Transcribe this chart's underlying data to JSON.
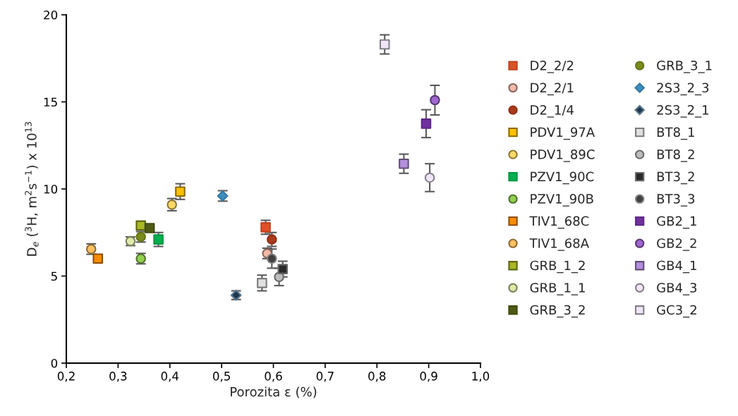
{
  "chart_data": {
    "type": "scatter",
    "xlabel": "Porozita ε (%)",
    "ylabel": "D$_{e}$ ($^{3}$H, m$^{2}$s$^{−1}$) x 10$^{13}$",
    "xlim": [
      0.2,
      1.0
    ],
    "ylim": [
      0,
      20
    ],
    "xticks": [
      {
        "value": 0.2,
        "label": "0,2"
      },
      {
        "value": 0.3,
        "label": "0,3"
      },
      {
        "value": 0.4,
        "label": "0,4"
      },
      {
        "value": 0.5,
        "label": "0,5"
      },
      {
        "value": 0.6,
        "label": "0,6"
      },
      {
        "value": 0.7,
        "label": "0,7"
      },
      {
        "value": 0.8,
        "label": "0,8"
      },
      {
        "value": 0.9,
        "label": "0,9"
      },
      {
        "value": 1.0,
        "label": "1,0"
      }
    ],
    "yticks": [
      0,
      5,
      10,
      15,
      20
    ],
    "grid": false,
    "legend": "right",
    "series": [
      {
        "name": "D2_2/2",
        "color": "#e05026",
        "marker": "square",
        "x": [
          0.585
        ],
        "values": [
          7.8
        ],
        "errors": [
          0.4
        ]
      },
      {
        "name": "D2_2/1",
        "color": "#f4b8a8",
        "marker": "circle",
        "x": [
          0.588
        ],
        "values": [
          6.3
        ],
        "errors": [
          0.3
        ]
      },
      {
        "name": "D2_1/4",
        "color": "#a93a1c",
        "marker": "circle",
        "x": [
          0.597
        ],
        "values": [
          7.1
        ],
        "errors": [
          0.4
        ]
      },
      {
        "name": "PDV1_97A",
        "color": "#ffc000",
        "marker": "square",
        "x": [
          0.42
        ],
        "values": [
          9.85
        ],
        "errors": [
          0.45
        ]
      },
      {
        "name": "PDV1_89C",
        "color": "#ffd966",
        "marker": "circle",
        "x": [
          0.404
        ],
        "values": [
          9.1
        ],
        "errors": [
          0.35
        ]
      },
      {
        "name": "PZV1_90C",
        "color": "#00b050",
        "marker": "square",
        "x": [
          0.378
        ],
        "values": [
          7.1
        ],
        "errors": [
          0.4
        ]
      },
      {
        "name": "PZV1_90B",
        "color": "#92d050",
        "marker": "circle",
        "x": [
          0.344
        ],
        "values": [
          6.0
        ],
        "errors": [
          0.3
        ]
      },
      {
        "name": "TIV1_68C",
        "color": "#ff8c00",
        "marker": "square",
        "x": [
          0.261
        ],
        "values": [
          6.0
        ],
        "errors": [
          null
        ]
      },
      {
        "name": "TIV1_68A",
        "color": "#ffbf60",
        "marker": "circle",
        "x": [
          0.248
        ],
        "values": [
          6.55
        ],
        "errors": [
          0.3
        ]
      },
      {
        "name": "GRB_1_2",
        "color": "#a9b823",
        "marker": "square",
        "x": [
          0.344
        ],
        "values": [
          7.9
        ],
        "errors": [
          null
        ]
      },
      {
        "name": "GRB_1_1",
        "color": "#e0eaa8",
        "marker": "circle",
        "x": [
          0.324
        ],
        "values": [
          7.0
        ],
        "errors": [
          0.25
        ]
      },
      {
        "name": "GRB_3_2",
        "color": "#4f5a14",
        "marker": "square",
        "x": [
          0.361
        ],
        "values": [
          7.75
        ],
        "errors": [
          null
        ]
      },
      {
        "name": "GRB_3_1",
        "color": "#7a8a1c",
        "marker": "circle",
        "x": [
          0.344
        ],
        "values": [
          7.25
        ],
        "errors": [
          0.3
        ]
      },
      {
        "name": "2S3_2_3",
        "color": "#3e8ebf",
        "marker": "diamond",
        "x": [
          0.502
        ],
        "values": [
          9.6
        ],
        "errors": [
          0.3
        ]
      },
      {
        "name": "2S3_2_1",
        "color": "#1f3a50",
        "marker": "diamond",
        "x": [
          0.528
        ],
        "values": [
          3.9
        ],
        "errors": [
          0.25
        ]
      },
      {
        "name": "BT8_1",
        "color": "#e0e0e0",
        "marker": "square",
        "x": [
          0.578
        ],
        "values": [
          4.6
        ],
        "errors": [
          0.45
        ]
      },
      {
        "name": "BT8_2",
        "color": "#bdbdbd",
        "marker": "circle",
        "x": [
          0.611
        ],
        "values": [
          4.95
        ],
        "errors": [
          0.5
        ]
      },
      {
        "name": "BT3_2",
        "color": "#2a2a2a",
        "marker": "square",
        "x": [
          0.618
        ],
        "values": [
          5.4
        ],
        "errors": [
          0.45
        ]
      },
      {
        "name": "BT3_3",
        "color": "#404040",
        "marker": "circle",
        "x": [
          0.597
        ],
        "values": [
          6.0
        ],
        "errors": [
          0.55
        ]
      },
      {
        "name": "GB2_1",
        "color": "#7030a0",
        "marker": "square",
        "x": [
          0.895
        ],
        "values": [
          13.75
        ],
        "errors": [
          0.8
        ]
      },
      {
        "name": "GB2_2",
        "color": "#a066d0",
        "marker": "circle",
        "x": [
          0.912
        ],
        "values": [
          15.1
        ],
        "errors": [
          0.85
        ]
      },
      {
        "name": "GB4_1",
        "color": "#b48fdc",
        "marker": "square",
        "x": [
          0.852
        ],
        "values": [
          11.45
        ],
        "errors": [
          0.55
        ]
      },
      {
        "name": "GB4_3",
        "color": "#f0e6f8",
        "marker": "circle",
        "x": [
          0.902
        ],
        "values": [
          10.65
        ],
        "errors": [
          0.8
        ]
      },
      {
        "name": "GC3_2",
        "color": "#f0e6f8",
        "marker": "square",
        "x": [
          0.815
        ],
        "values": [
          18.3
        ],
        "errors": [
          0.55
        ]
      }
    ]
  }
}
